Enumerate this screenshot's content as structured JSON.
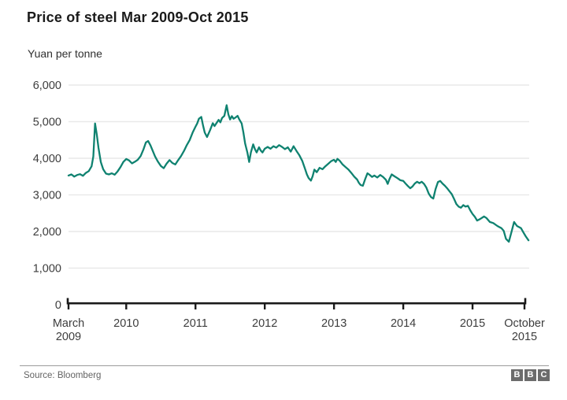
{
  "header": {
    "title": "Price of steel Mar 2009-Oct 2015",
    "subtitle": "Yuan per tonne"
  },
  "footer": {
    "source": "Source: Bloomberg",
    "logo_blocks": [
      "B",
      "B",
      "C"
    ]
  },
  "colors": {
    "line": "#0f8270",
    "grid": "#e9e9e9",
    "axis": "#1a1a1a",
    "tick_text": "#3d3d3d"
  },
  "chart_data": {
    "type": "line",
    "title": "Price of steel Mar 2009-Oct 2015",
    "ylabel": "Yuan per tonne",
    "xlabel": "",
    "ylim": [
      0,
      6000
    ],
    "grid": "horizontal",
    "legend": "none",
    "x_unit": "months since March 2009",
    "x_range_labels": [
      "March 2009",
      "October 2015"
    ],
    "y_ticks": [
      {
        "value": 0,
        "label": "0"
      },
      {
        "value": 1000,
        "label": "1,000"
      },
      {
        "value": 2000,
        "label": "2,000"
      },
      {
        "value": 3000,
        "label": "3,000"
      },
      {
        "value": 4000,
        "label": "4,000"
      },
      {
        "value": 5000,
        "label": "5,000"
      },
      {
        "value": 6000,
        "label": "6,000"
      }
    ],
    "x_ticks": [
      {
        "month": 0,
        "line1": "March",
        "line2": "2009"
      },
      {
        "month": 10,
        "line1": "2010",
        "line2": ""
      },
      {
        "month": 22,
        "line1": "2011",
        "line2": ""
      },
      {
        "month": 34,
        "line1": "2012",
        "line2": ""
      },
      {
        "month": 46,
        "line1": "2013",
        "line2": ""
      },
      {
        "month": 58,
        "line1": "2014",
        "line2": ""
      },
      {
        "month": 70,
        "line1": "2015",
        "line2": ""
      },
      {
        "month": 79,
        "line1": "October",
        "line2": "2015"
      }
    ],
    "series": [
      {
        "name": "Price of steel (yuan per tonne)",
        "color": "#0f8270",
        "points": [
          [
            0,
            3530
          ],
          [
            0.5,
            3560
          ],
          [
            1,
            3500
          ],
          [
            1.5,
            3545
          ],
          [
            2,
            3565
          ],
          [
            2.5,
            3520
          ],
          [
            3,
            3600
          ],
          [
            3.5,
            3650
          ],
          [
            4,
            3780
          ],
          [
            4.3,
            4050
          ],
          [
            4.6,
            4950
          ],
          [
            4.9,
            4650
          ],
          [
            5.2,
            4280
          ],
          [
            5.6,
            3900
          ],
          [
            6,
            3700
          ],
          [
            6.5,
            3580
          ],
          [
            7,
            3560
          ],
          [
            7.5,
            3590
          ],
          [
            8,
            3550
          ],
          [
            8.5,
            3640
          ],
          [
            9,
            3760
          ],
          [
            9.5,
            3900
          ],
          [
            10,
            3980
          ],
          [
            10.5,
            3940
          ],
          [
            11,
            3860
          ],
          [
            11.5,
            3905
          ],
          [
            12,
            3960
          ],
          [
            12.5,
            4060
          ],
          [
            13,
            4250
          ],
          [
            13.4,
            4430
          ],
          [
            13.8,
            4470
          ],
          [
            14.2,
            4350
          ],
          [
            14.6,
            4200
          ],
          [
            15,
            4050
          ],
          [
            15.5,
            3905
          ],
          [
            16,
            3790
          ],
          [
            16.5,
            3730
          ],
          [
            17,
            3855
          ],
          [
            17.5,
            3950
          ],
          [
            18,
            3870
          ],
          [
            18.5,
            3830
          ],
          [
            19,
            3950
          ],
          [
            19.5,
            4060
          ],
          [
            20,
            4200
          ],
          [
            20.5,
            4360
          ],
          [
            21,
            4500
          ],
          [
            21.5,
            4700
          ],
          [
            22,
            4860
          ],
          [
            22.3,
            4950
          ],
          [
            22.6,
            5080
          ],
          [
            23,
            5130
          ],
          [
            23.3,
            4900
          ],
          [
            23.6,
            4700
          ],
          [
            24,
            4580
          ],
          [
            24.5,
            4760
          ],
          [
            25,
            4960
          ],
          [
            25.3,
            4880
          ],
          [
            25.6,
            4950
          ],
          [
            26,
            5050
          ],
          [
            26.3,
            4980
          ],
          [
            26.6,
            5100
          ],
          [
            27,
            5160
          ],
          [
            27.4,
            5450
          ],
          [
            27.7,
            5200
          ],
          [
            28,
            5060
          ],
          [
            28.3,
            5150
          ],
          [
            28.6,
            5080
          ],
          [
            29,
            5120
          ],
          [
            29.3,
            5160
          ],
          [
            29.6,
            5060
          ],
          [
            30,
            4950
          ],
          [
            30.3,
            4700
          ],
          [
            30.6,
            4400
          ],
          [
            31,
            4150
          ],
          [
            31.3,
            3900
          ],
          [
            31.6,
            4160
          ],
          [
            32,
            4380
          ],
          [
            32.3,
            4250
          ],
          [
            32.6,
            4160
          ],
          [
            33,
            4300
          ],
          [
            33.3,
            4210
          ],
          [
            33.6,
            4160
          ],
          [
            34,
            4260
          ],
          [
            34.5,
            4310
          ],
          [
            35,
            4260
          ],
          [
            35.5,
            4330
          ],
          [
            36,
            4290
          ],
          [
            36.5,
            4360
          ],
          [
            37,
            4310
          ],
          [
            37.5,
            4250
          ],
          [
            38,
            4300
          ],
          [
            38.5,
            4180
          ],
          [
            39,
            4330
          ],
          [
            39.5,
            4200
          ],
          [
            40,
            4080
          ],
          [
            40.5,
            3930
          ],
          [
            41,
            3700
          ],
          [
            41.3,
            3560
          ],
          [
            41.6,
            3460
          ],
          [
            42,
            3390
          ],
          [
            42.3,
            3510
          ],
          [
            42.6,
            3690
          ],
          [
            43,
            3620
          ],
          [
            43.5,
            3740
          ],
          [
            44,
            3700
          ],
          [
            44.5,
            3780
          ],
          [
            45,
            3850
          ],
          [
            45.5,
            3920
          ],
          [
            46,
            3960
          ],
          [
            46.3,
            3900
          ],
          [
            46.6,
            3985
          ],
          [
            47,
            3930
          ],
          [
            47.5,
            3830
          ],
          [
            48,
            3760
          ],
          [
            48.5,
            3690
          ],
          [
            49,
            3600
          ],
          [
            49.5,
            3500
          ],
          [
            50,
            3420
          ],
          [
            50.3,
            3330
          ],
          [
            50.6,
            3270
          ],
          [
            51,
            3250
          ],
          [
            51.4,
            3430
          ],
          [
            51.8,
            3590
          ],
          [
            52.2,
            3545
          ],
          [
            52.6,
            3490
          ],
          [
            53,
            3530
          ],
          [
            53.5,
            3475
          ],
          [
            54,
            3545
          ],
          [
            54.5,
            3490
          ],
          [
            55,
            3410
          ],
          [
            55.3,
            3300
          ],
          [
            55.6,
            3430
          ],
          [
            56,
            3560
          ],
          [
            56.5,
            3505
          ],
          [
            57,
            3455
          ],
          [
            57.5,
            3400
          ],
          [
            58,
            3380
          ],
          [
            58.4,
            3310
          ],
          [
            58.8,
            3240
          ],
          [
            59.2,
            3180
          ],
          [
            59.6,
            3230
          ],
          [
            60,
            3310
          ],
          [
            60.4,
            3360
          ],
          [
            60.8,
            3320
          ],
          [
            61.2,
            3360
          ],
          [
            61.6,
            3300
          ],
          [
            62,
            3200
          ],
          [
            62.4,
            3040
          ],
          [
            62.8,
            2940
          ],
          [
            63.2,
            2900
          ],
          [
            63.6,
            3160
          ],
          [
            64,
            3350
          ],
          [
            64.4,
            3380
          ],
          [
            64.8,
            3310
          ],
          [
            65.2,
            3250
          ],
          [
            65.6,
            3180
          ],
          [
            66,
            3100
          ],
          [
            66.4,
            3020
          ],
          [
            66.8,
            2890
          ],
          [
            67.2,
            2750
          ],
          [
            67.6,
            2680
          ],
          [
            68,
            2650
          ],
          [
            68.4,
            2720
          ],
          [
            68.8,
            2680
          ],
          [
            69.2,
            2700
          ],
          [
            69.6,
            2580
          ],
          [
            70,
            2480
          ],
          [
            70.4,
            2400
          ],
          [
            70.8,
            2300
          ],
          [
            71.3,
            2340
          ],
          [
            72,
            2410
          ],
          [
            72.4,
            2370
          ],
          [
            73,
            2260
          ],
          [
            73.6,
            2230
          ],
          [
            74.3,
            2150
          ],
          [
            75,
            2090
          ],
          [
            75.4,
            2020
          ],
          [
            75.8,
            1800
          ],
          [
            76.3,
            1720
          ],
          [
            76.8,
            2020
          ],
          [
            77.2,
            2260
          ],
          [
            77.7,
            2150
          ],
          [
            78.4,
            2090
          ],
          [
            78.8,
            1980
          ],
          [
            79.2,
            1870
          ],
          [
            79.7,
            1760
          ]
        ]
      }
    ]
  }
}
